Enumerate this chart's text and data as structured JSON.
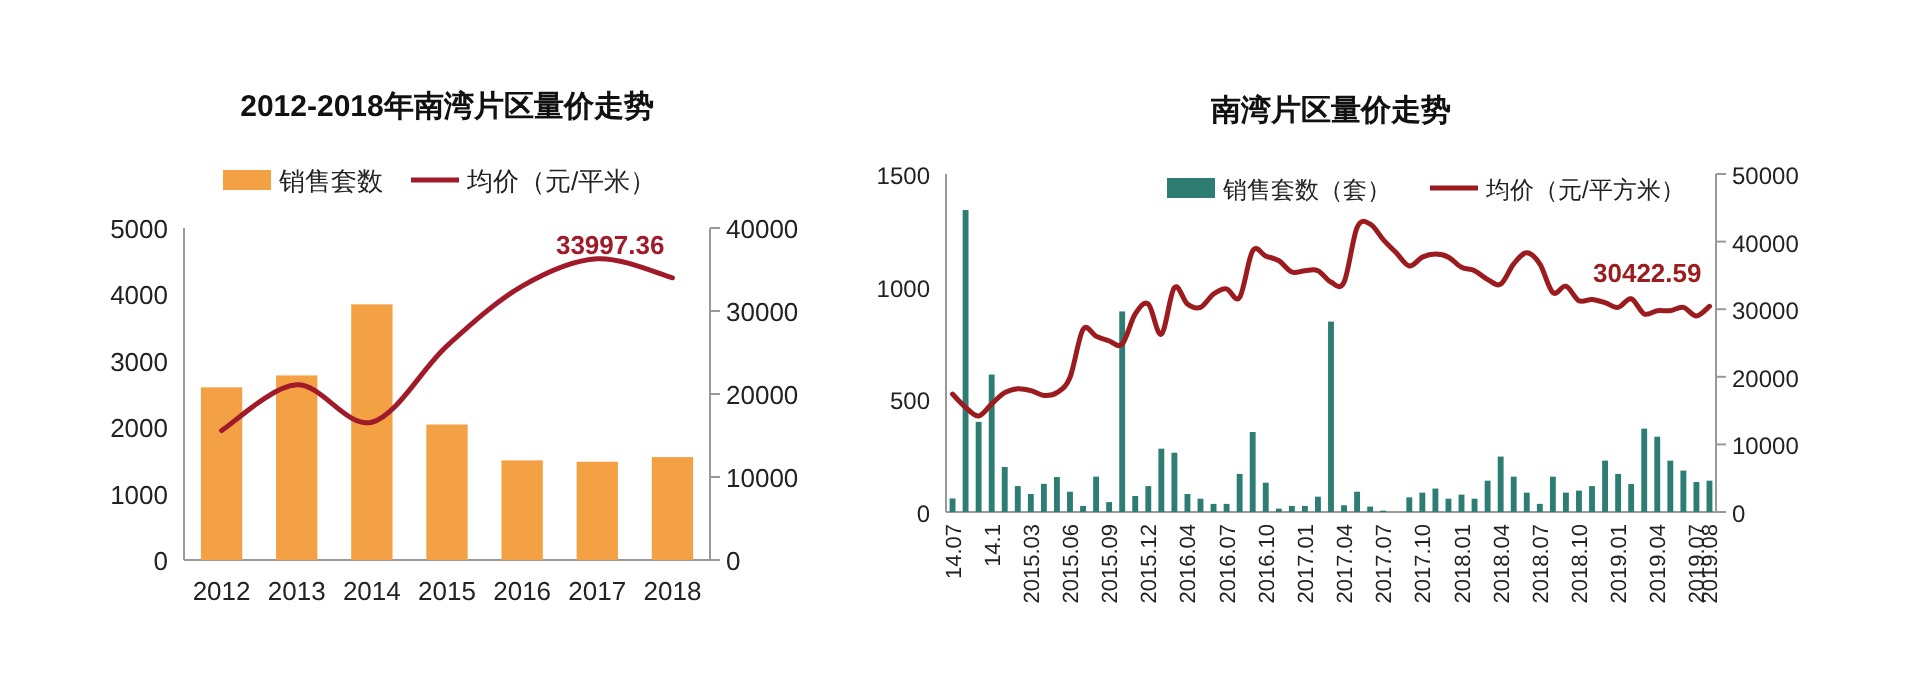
{
  "chart_data": [
    {
      "type": "bar",
      "title": "2012-2018年南湾片区量价走势",
      "categories": [
        "2012",
        "2013",
        "2014",
        "2015",
        "2016",
        "2017",
        "2018"
      ],
      "legend": "top",
      "ylim": [
        0,
        5000
      ],
      "yticks": [
        0,
        1000,
        2000,
        3000,
        4000,
        5000
      ],
      "y2lim": [
        0,
        40000
      ],
      "y2ticks": [
        0,
        10000,
        20000,
        30000,
        40000
      ],
      "series": [
        {
          "name": "销售套数",
          "color": "#f4a044",
          "values": [
            2600,
            2780,
            3850,
            2040,
            1500,
            1480,
            1550
          ]
        },
        {
          "name": "均价（元/平米）",
          "type": "line",
          "axis": "y2",
          "color": "#a01a2a",
          "values": [
            15600,
            21100,
            16600,
            25800,
            33000,
            36300,
            33997.36
          ],
          "value_labels": [
            null,
            null,
            null,
            null,
            null,
            null,
            "33997.36"
          ]
        }
      ]
    },
    {
      "type": "bar",
      "title": "南湾片区量价走势",
      "legend": "top",
      "categories": [
        "14.07",
        null,
        null,
        "14.1",
        null,
        null,
        "2015.03",
        null,
        null,
        "2015.06",
        null,
        null,
        "2015.09",
        null,
        null,
        "2015.12",
        null,
        null,
        "2016.04",
        null,
        null,
        "2016.07",
        null,
        null,
        "2016.10",
        null,
        null,
        "2017.01",
        null,
        null,
        "2017.04",
        null,
        null,
        "2017.07",
        null,
        null,
        "2017.10",
        null,
        null,
        "2018.01",
        null,
        null,
        "2018.04",
        null,
        null,
        "2018.07",
        null,
        null,
        "2018.10",
        null,
        null,
        "2019.01",
        null,
        null,
        "2019.04",
        null,
        null,
        "2019.07",
        "2019.08"
      ],
      "ylim": [
        0,
        1500
      ],
      "yticks": [
        0,
        500,
        1000,
        1500
      ],
      "y2lim": [
        0,
        50000
      ],
      "y2ticks": [
        0,
        10000,
        20000,
        30000,
        40000,
        50000
      ],
      "series": [
        {
          "name": "销售套数（套）",
          "color": "#2e7d74",
          "values": [
            60,
            1340,
            400,
            610,
            200,
            115,
            80,
            125,
            155,
            90,
            27,
            157,
            44,
            890,
            71,
            115,
            281,
            263,
            80,
            59,
            36,
            36,
            169,
            355,
            130,
            15,
            27,
            27,
            68,
            845,
            30,
            90,
            24,
            6,
            0,
            65,
            86,
            104,
            59,
            77,
            59,
            139,
            246,
            157,
            86,
            36,
            157,
            86,
            95,
            115,
            228,
            169,
            124,
            370,
            334,
            228,
            184,
            133,
            139
          ]
        },
        {
          "name": "均价（元/平方米）",
          "type": "line",
          "axis": "y2",
          "color": "#9b1b1e",
          "values": [
            17450,
            15480,
            14200,
            16000,
            17650,
            18240,
            17950,
            17250,
            17650,
            19900,
            27000,
            26000,
            25300,
            24850,
            29300,
            30760,
            26300,
            33200,
            30760,
            30270,
            32240,
            33000,
            31750,
            38650,
            37860,
            37170,
            35500,
            35700,
            35700,
            34000,
            34000,
            42100,
            42600,
            40300,
            38350,
            36400,
            37700,
            38150,
            37700,
            36200,
            35700,
            34400,
            33700,
            36700,
            38350,
            36700,
            32450,
            33400,
            31250,
            31450,
            30960,
            30270,
            31550,
            29300,
            29780,
            29780,
            30270,
            29000,
            30422.59
          ],
          "value_labels": [
            null,
            null,
            null,
            null,
            null,
            null,
            null,
            null,
            null,
            null,
            null,
            null,
            null,
            null,
            null,
            null,
            null,
            null,
            null,
            null,
            null,
            null,
            null,
            null,
            null,
            null,
            null,
            null,
            null,
            null,
            null,
            null,
            null,
            null,
            null,
            null,
            null,
            null,
            null,
            null,
            null,
            null,
            null,
            null,
            null,
            null,
            null,
            null,
            null,
            null,
            null,
            null,
            null,
            null,
            null,
            null,
            null,
            null,
            "30422.59"
          ]
        }
      ]
    }
  ]
}
